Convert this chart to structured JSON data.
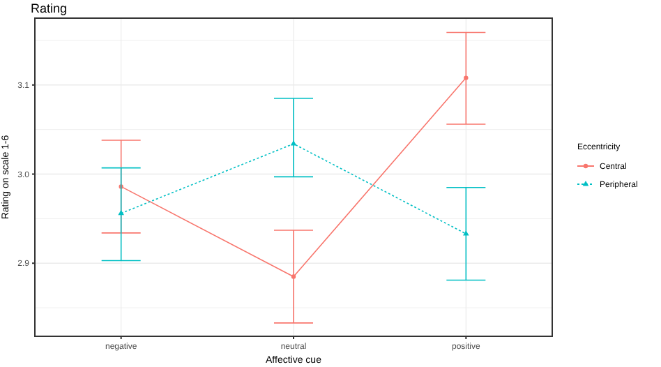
{
  "chart_data": {
    "type": "line",
    "title": "Rating",
    "xlabel": "Affective cue",
    "ylabel": "Rating on scale 1-6",
    "legend_title": "Eccentricity",
    "categories": [
      "negative",
      "neutral",
      "positive"
    ],
    "series": [
      {
        "name": "Central",
        "color": "#f8766d",
        "values": [
          2.986,
          2.885,
          3.108
        ],
        "errors": [
          [
            2.934,
            3.038
          ],
          [
            2.833,
            2.937
          ],
          [
            3.056,
            3.159
          ]
        ],
        "marker": "circle",
        "line_style": "solid"
      },
      {
        "name": "Peripheral",
        "color": "#00bfc4",
        "values": [
          2.956,
          3.034,
          2.933
        ],
        "errors": [
          [
            2.903,
            3.007
          ],
          [
            2.997,
            3.085
          ],
          [
            2.881,
            2.985
          ]
        ],
        "marker": "triangle",
        "line_style": "dotted"
      }
    ],
    "ylim": [
      2.818,
      3.175
    ],
    "yticks": [
      {
        "value": 2.85,
        "label": null
      },
      2.9,
      {
        "value": 2.95,
        "label": null
      },
      {
        "value": 3.0,
        "label": "3.0"
      },
      {
        "value": 3.05,
        "label": null
      },
      3.1,
      {
        "value": 3.15,
        "label": null
      }
    ],
    "grid": true,
    "legend": "right"
  }
}
